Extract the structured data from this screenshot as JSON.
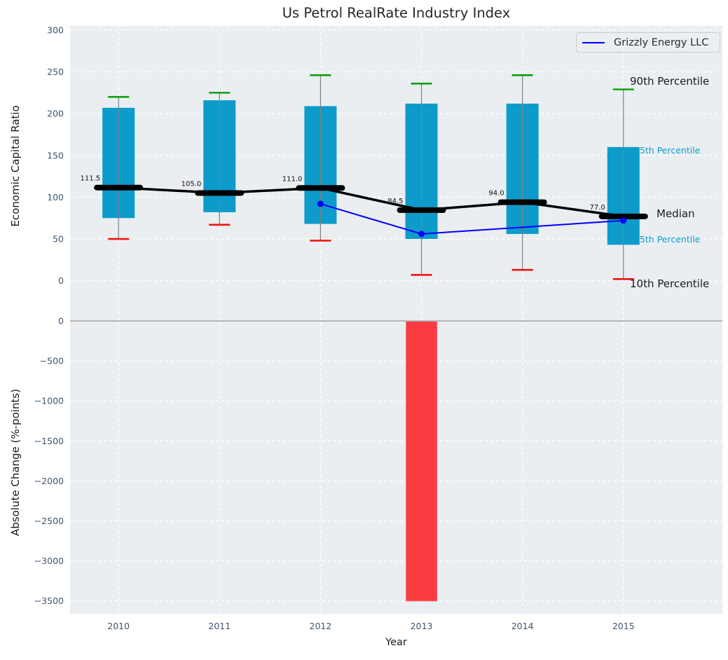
{
  "title": "Us Petrol RealRate Industry Index",
  "colors": {
    "axes_background": "#eaeef1",
    "grid": "#ffffff",
    "tick_labels": "#3d566e",
    "box_fill": "#0d9bcb",
    "p90_cap": "#10a010",
    "p10_cap": "#f01414",
    "whisker": "#7f7f7f",
    "median_line": "#000000",
    "company_line": "#0000ff",
    "change_bar": "#f93b42",
    "change_bar_edge": "#fa686d",
    "zero_line": "#b3b3b3",
    "text": "#262626"
  },
  "chart_data": [
    {
      "type": "box",
      "title": "Us Petrol RealRate Industry Index",
      "ylabel": "Economic Capital Ratio",
      "ylim": [
        -33,
        305
      ],
      "yticks": [
        0,
        50,
        100,
        150,
        200,
        250,
        300
      ],
      "grid": true,
      "legend_position": "upper right",
      "categories": [
        "2010",
        "2011",
        "2012",
        "2013",
        "2014",
        "2015"
      ],
      "series": [
        {
          "name": "10th Percentile",
          "values": [
            50,
            67,
            48,
            7,
            13,
            2
          ]
        },
        {
          "name": "25th Percentile",
          "values": [
            75,
            82,
            68,
            50,
            56,
            43
          ]
        },
        {
          "name": "Median",
          "values": [
            111.5,
            105.0,
            111.0,
            84.5,
            94.0,
            77.0
          ]
        },
        {
          "name": "75th Percentile",
          "values": [
            207,
            216,
            209,
            212,
            212,
            160
          ]
        },
        {
          "name": "90th Percentile",
          "values": [
            220,
            225,
            246,
            236,
            246,
            229
          ]
        }
      ],
      "median_labels": [
        "111.5",
        "105.0",
        "111.0",
        "84.5",
        "94.0",
        "77.0"
      ],
      "company_series": {
        "name": "Grizzly Energy LLC",
        "years": [
          "2012",
          "2013",
          "2015"
        ],
        "values": [
          92,
          56,
          72
        ]
      },
      "right_labels": [
        "90th Percentile",
        "75th Percentile",
        "Median",
        "25th Percentile",
        "10th Percentile"
      ]
    },
    {
      "type": "bar",
      "ylabel": "Absolute Change (%-points)",
      "xlabel": "Year",
      "ylim": [
        -3660,
        158
      ],
      "yticks": [
        0,
        -500,
        -1000,
        -1500,
        -2000,
        -2500,
        -3000,
        -3500
      ],
      "grid": true,
      "categories": [
        "2010",
        "2011",
        "2012",
        "2013",
        "2014",
        "2015"
      ],
      "values": [
        null,
        null,
        null,
        -3500,
        null,
        null
      ]
    }
  ]
}
